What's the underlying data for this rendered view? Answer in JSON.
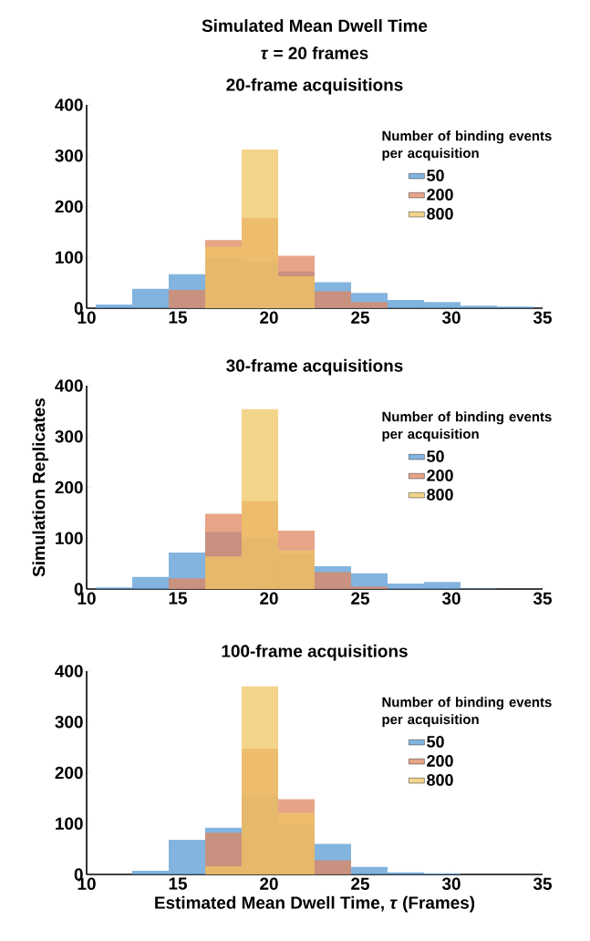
{
  "chart_data": [
    {
      "type": "histogram",
      "title": "20-frame acquisitions",
      "annotations": [
        "Simulated Mean Dwell Time",
        "*τ* = 20 frames"
      ],
      "legend_title": "Number of binding events per acquisition",
      "legend": "right",
      "bins": [
        10.5,
        12.5,
        14.5,
        16.5,
        18.5,
        20.5,
        22.5,
        24.5,
        26.5,
        28.5,
        30.5,
        32.5,
        34.5
      ],
      "xlim": [
        10,
        35
      ],
      "ylim": [
        0,
        400
      ],
      "xticks": [
        10,
        15,
        20,
        25,
        30,
        35
      ],
      "yticks": [
        0,
        100,
        200,
        300,
        400
      ],
      "series": [
        {
          "name": "50",
          "color": "#5a9bd4",
          "values": [
            7,
            38,
            67,
            98,
            90,
            72,
            51,
            30,
            16,
            12,
            5,
            3
          ]
        },
        {
          "name": "200",
          "color": "#e0855f",
          "values": [
            0,
            0,
            36,
            134,
            177,
            103,
            33,
            12,
            0,
            0,
            0,
            0
          ]
        },
        {
          "name": "800",
          "color": "#efc664",
          "values": [
            0,
            0,
            0,
            121,
            312,
            63,
            0,
            0,
            0,
            0,
            0,
            0
          ]
        }
      ]
    },
    {
      "type": "histogram",
      "title": "30-frame acquisitions",
      "ylabel": "Simulation Replicates",
      "legend_title": "Number of binding events per acquisition",
      "legend": "right",
      "bins": [
        10.5,
        12.5,
        14.5,
        16.5,
        18.5,
        20.5,
        22.5,
        24.5,
        26.5,
        28.5,
        30.5,
        32.5,
        34.5
      ],
      "xlim": [
        10,
        35
      ],
      "ylim": [
        0,
        400
      ],
      "xticks": [
        10,
        15,
        20,
        25,
        30,
        35
      ],
      "yticks": [
        0,
        100,
        200,
        300,
        400
      ],
      "series": [
        {
          "name": "50",
          "color": "#5a9bd4",
          "values": [
            3,
            24,
            72,
            112,
            99,
            70,
            45,
            31,
            11,
            14,
            1,
            0
          ]
        },
        {
          "name": "200",
          "color": "#e0855f",
          "values": [
            0,
            0,
            21,
            148,
            173,
            115,
            33,
            5,
            0,
            0,
            0,
            0
          ]
        },
        {
          "name": "800",
          "color": "#efc664",
          "values": [
            0,
            0,
            0,
            64,
            354,
            76,
            0,
            0,
            0,
            0,
            0,
            0
          ]
        }
      ]
    },
    {
      "type": "histogram",
      "title": "100-frame acquisitions",
      "xlabel": "Estimated Mean Dwell Time, *τ*  (Frames)",
      "legend_title": "Number of binding events per acquisition",
      "legend": "right",
      "bins": [
        10.5,
        12.5,
        14.5,
        16.5,
        18.5,
        20.5,
        22.5,
        24.5,
        26.5,
        28.5,
        30.5,
        32.5,
        34.5
      ],
      "xlim": [
        10,
        35
      ],
      "ylim": [
        0,
        400
      ],
      "xticks": [
        10,
        15,
        20,
        25,
        30,
        35
      ],
      "yticks": [
        0,
        100,
        200,
        300,
        400
      ],
      "series": [
        {
          "name": "50",
          "color": "#5a9bd4",
          "values": [
            0,
            7,
            68,
            92,
            154,
            98,
            60,
            15,
            4,
            2,
            0,
            0
          ]
        },
        {
          "name": "200",
          "color": "#e0855f",
          "values": [
            0,
            0,
            0,
            82,
            247,
            148,
            28,
            0,
            0,
            0,
            0,
            0
          ]
        },
        {
          "name": "800",
          "color": "#efc664",
          "values": [
            0,
            0,
            0,
            16,
            370,
            121,
            0,
            0,
            0,
            0,
            0,
            0
          ]
        }
      ]
    }
  ]
}
